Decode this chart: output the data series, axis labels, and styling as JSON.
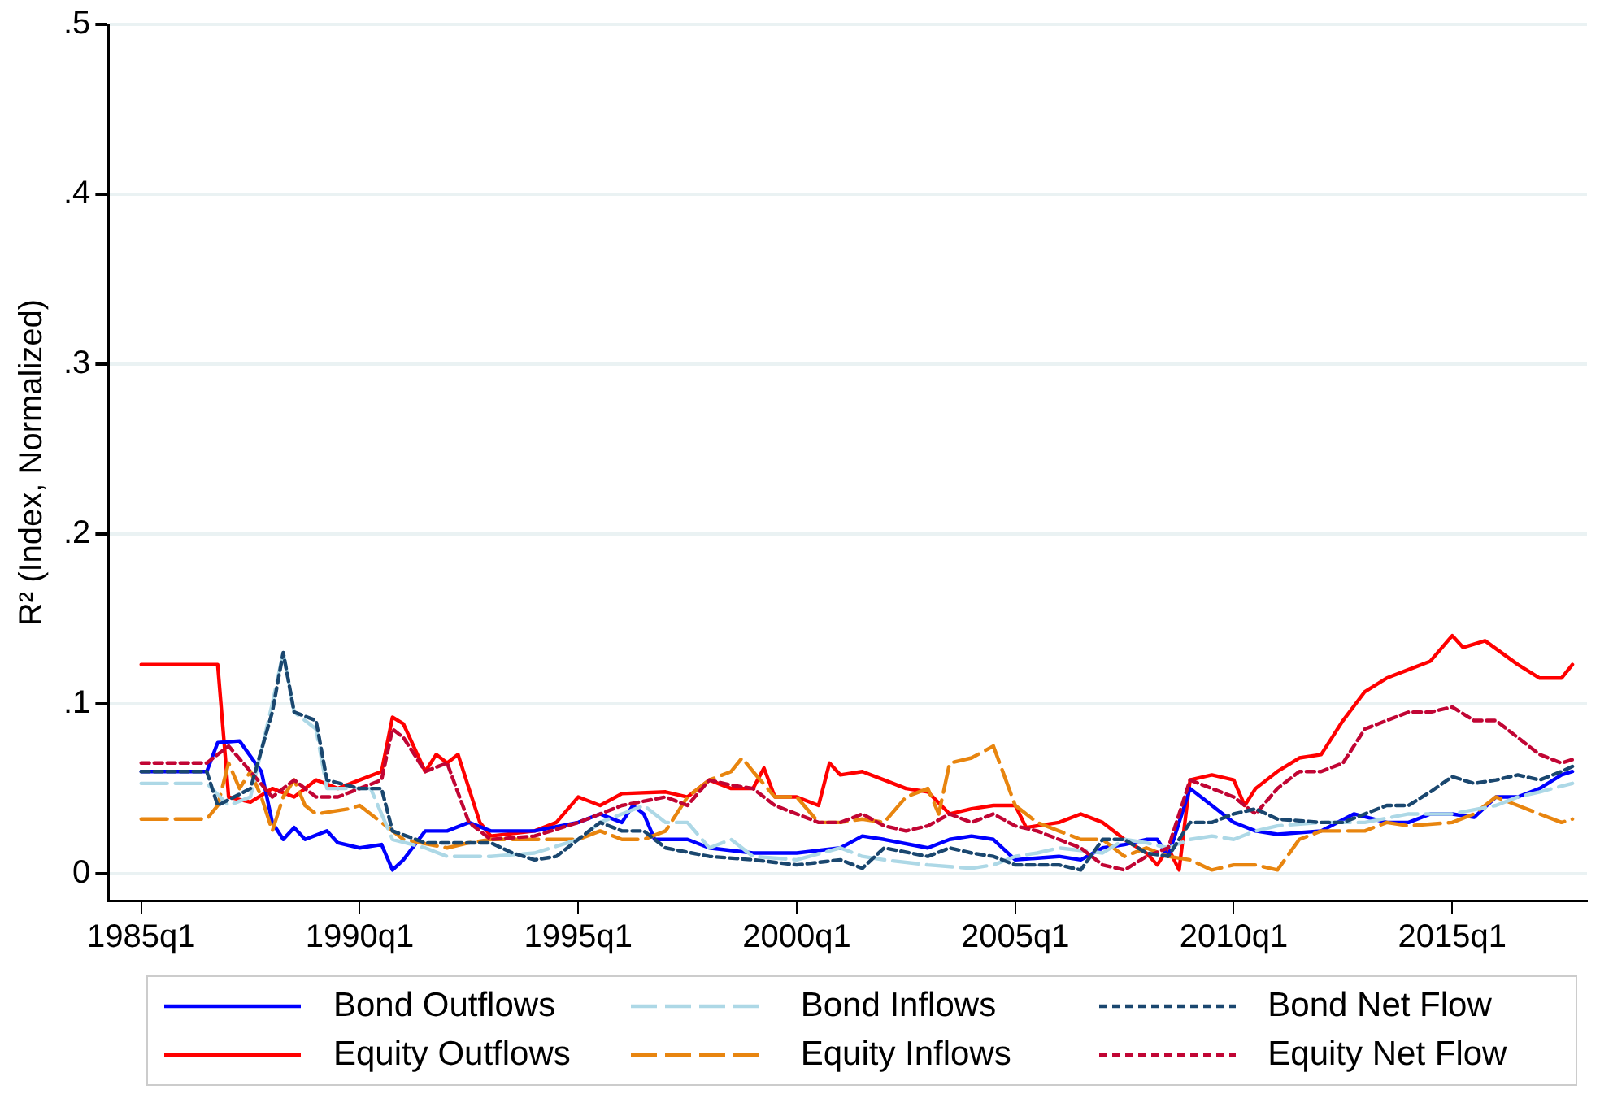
{
  "chart_data": {
    "type": "line",
    "ylabel": "R² (Index, Normalized)",
    "xlim": [
      "1984-04",
      "2018-02"
    ],
    "ylim": [
      -0.016,
      0.5
    ],
    "xticks": [
      {
        "value": "1985-01",
        "label": "1985q1"
      },
      {
        "value": "1990-01",
        "label": "1990q1"
      },
      {
        "value": "1995-01",
        "label": "1995q1"
      },
      {
        "value": "2000-01",
        "label": "2000q1"
      },
      {
        "value": "2005-01",
        "label": "2005q1"
      },
      {
        "value": "2010-01",
        "label": "2010q1"
      },
      {
        "value": "2015-01",
        "label": "2015q1"
      }
    ],
    "yticks": [
      0,
      {
        "value": 0.1,
        "label": ".1"
      },
      {
        "value": 0.2,
        "label": ".2"
      },
      {
        "value": 0.3,
        "label": ".3"
      },
      {
        "value": 0.4,
        "label": ".4"
      },
      {
        "value": 0.5,
        "label": ".5"
      }
    ],
    "grid": "y",
    "legend": "bottom",
    "series": [
      {
        "name": "Bond Outflows",
        "color": "#0000ff",
        "line_style": "solid",
        "x": [
          "1985-01",
          "1986-07",
          "1986-10",
          "1987-04",
          "1987-10",
          "1988-01",
          "1988-04",
          "1988-07",
          "1988-10",
          "1989-04",
          "1989-07",
          "1990-01",
          "1990-07",
          "1990-10",
          "1991-01",
          "1991-07",
          "1992-01",
          "1992-07",
          "1993-01",
          "1994-01",
          "1995-01",
          "1995-07",
          "1996-01",
          "1996-04",
          "1996-07",
          "1996-10",
          "1997-07",
          "1998-01",
          "1999-01",
          "2000-01",
          "2001-01",
          "2001-07",
          "2002-01",
          "2003-01",
          "2003-07",
          "2004-01",
          "2004-07",
          "2005-01",
          "2006-01",
          "2006-07",
          "2007-01",
          "2007-07",
          "2008-01",
          "2008-04",
          "2008-07",
          "2009-01",
          "2009-04",
          "2009-10",
          "2010-01",
          "2010-07",
          "2011-01",
          "2012-01",
          "2012-10",
          "2013-07",
          "2014-01",
          "2014-07",
          "2015-01",
          "2015-07",
          "2016-01",
          "2016-07",
          "2017-01",
          "2017-07",
          "2017-10"
        ],
        "values": [
          0.06,
          0.06,
          0.077,
          0.078,
          0.06,
          0.03,
          0.02,
          0.027,
          0.02,
          0.025,
          0.018,
          0.015,
          0.017,
          0.002,
          0.008,
          0.025,
          0.025,
          0.03,
          0.025,
          0.025,
          0.03,
          0.035,
          0.03,
          0.04,
          0.035,
          0.02,
          0.02,
          0.015,
          0.012,
          0.012,
          0.015,
          0.022,
          0.02,
          0.015,
          0.02,
          0.022,
          0.02,
          0.008,
          0.01,
          0.008,
          0.015,
          0.017,
          0.02,
          0.02,
          0.01,
          0.05,
          0.045,
          0.035,
          0.03,
          0.025,
          0.023,
          0.025,
          0.035,
          0.03,
          0.03,
          0.035,
          0.035,
          0.033,
          0.045,
          0.045,
          0.05,
          0.058,
          0.06
        ]
      },
      {
        "name": "Bond Inflows",
        "color": "#add8e6",
        "line_style": "dashed",
        "x": [
          "1985-01",
          "1986-07",
          "1987-01",
          "1987-07",
          "1988-01",
          "1988-04",
          "1988-07",
          "1989-01",
          "1989-04",
          "1990-01",
          "1990-04",
          "1990-10",
          "1991-07",
          "1992-01",
          "1993-01",
          "1994-01",
          "1995-01",
          "1995-07",
          "1996-01",
          "1996-07",
          "1997-01",
          "1997-07",
          "1998-01",
          "1998-07",
          "1999-01",
          "2000-01",
          "2001-01",
          "2001-07",
          "2002-01",
          "2003-01",
          "2004-01",
          "2004-07",
          "2005-01",
          "2005-07",
          "2006-01",
          "2007-01",
          "2007-07",
          "2008-01",
          "2008-07",
          "2009-01",
          "2009-07",
          "2010-01",
          "2010-07",
          "2011-01",
          "2012-01",
          "2013-01",
          "2014-01",
          "2015-01",
          "2016-01",
          "2016-07",
          "2017-01",
          "2017-10"
        ],
        "values": [
          0.053,
          0.053,
          0.04,
          0.045,
          0.1,
          0.13,
          0.095,
          0.085,
          0.05,
          0.05,
          0.05,
          0.02,
          0.015,
          0.01,
          0.01,
          0.012,
          0.02,
          0.03,
          0.035,
          0.04,
          0.03,
          0.03,
          0.015,
          0.02,
          0.01,
          0.008,
          0.015,
          0.01,
          0.008,
          0.005,
          0.003,
          0.005,
          0.01,
          0.012,
          0.015,
          0.012,
          0.02,
          0.018,
          0.015,
          0.02,
          0.022,
          0.02,
          0.025,
          0.028,
          0.03,
          0.03,
          0.035,
          0.035,
          0.04,
          0.045,
          0.048,
          0.053
        ]
      },
      {
        "name": "Bond Net Flow",
        "color": "#1a476f",
        "line_style": "dotted",
        "x": [
          "1985-01",
          "1986-07",
          "1986-10",
          "1987-07",
          "1988-01",
          "1988-04",
          "1988-07",
          "1989-01",
          "1989-04",
          "1990-01",
          "1990-07",
          "1990-10",
          "1991-07",
          "1992-07",
          "1993-01",
          "1993-07",
          "1994-01",
          "1994-07",
          "1995-01",
          "1995-07",
          "1996-01",
          "1996-07",
          "1997-01",
          "1998-01",
          "1999-01",
          "2000-01",
          "2001-01",
          "2001-07",
          "2002-01",
          "2003-01",
          "2003-07",
          "2004-01",
          "2004-07",
          "2005-01",
          "2006-01",
          "2006-07",
          "2007-01",
          "2007-07",
          "2008-01",
          "2008-07",
          "2009-01",
          "2009-07",
          "2010-01",
          "2010-07",
          "2011-01",
          "2012-01",
          "2012-07",
          "2013-01",
          "2013-07",
          "2014-01",
          "2014-07",
          "2015-01",
          "2015-07",
          "2016-01",
          "2016-07",
          "2017-01",
          "2017-07",
          "2017-10"
        ],
        "values": [
          0.06,
          0.06,
          0.04,
          0.05,
          0.095,
          0.13,
          0.095,
          0.09,
          0.055,
          0.05,
          0.05,
          0.025,
          0.018,
          0.018,
          0.018,
          0.012,
          0.008,
          0.01,
          0.02,
          0.03,
          0.025,
          0.025,
          0.015,
          0.01,
          0.008,
          0.005,
          0.008,
          0.003,
          0.015,
          0.01,
          0.015,
          0.012,
          0.01,
          0.005,
          0.005,
          0.002,
          0.02,
          0.02,
          0.012,
          0.01,
          0.03,
          0.03,
          0.035,
          0.038,
          0.032,
          0.03,
          0.03,
          0.035,
          0.04,
          0.04,
          0.048,
          0.057,
          0.053,
          0.055,
          0.058,
          0.055,
          0.06,
          0.063
        ]
      },
      {
        "name": "Equity Outflows",
        "color": "#ff0000",
        "line_style": "solid",
        "x": [
          "1985-01",
          "1986-10",
          "1987-01",
          "1987-07",
          "1988-01",
          "1988-07",
          "1989-01",
          "1989-07",
          "1990-01",
          "1990-07",
          "1990-10",
          "1991-01",
          "1991-07",
          "1991-10",
          "1992-01",
          "1992-04",
          "1992-10",
          "1993-01",
          "1994-01",
          "1994-07",
          "1995-01",
          "1995-07",
          "1996-01",
          "1997-01",
          "1997-07",
          "1998-01",
          "1998-07",
          "1999-01",
          "1999-04",
          "1999-07",
          "2000-01",
          "2000-07",
          "2000-10",
          "2001-01",
          "2001-07",
          "2002-01",
          "2002-07",
          "2003-01",
          "2003-07",
          "2004-01",
          "2004-07",
          "2005-01",
          "2005-04",
          "2006-01",
          "2006-07",
          "2007-01",
          "2007-07",
          "2008-01",
          "2008-04",
          "2008-07",
          "2008-10",
          "2009-01",
          "2009-07",
          "2010-01",
          "2010-04",
          "2010-07",
          "2011-01",
          "2011-07",
          "2012-01",
          "2012-07",
          "2013-01",
          "2013-07",
          "2014-01",
          "2014-07",
          "2015-01",
          "2015-04",
          "2015-10",
          "2016-07",
          "2017-01",
          "2017-07",
          "2017-10"
        ],
        "values": [
          0.123,
          0.123,
          0.045,
          0.042,
          0.05,
          0.045,
          0.055,
          0.05,
          0.055,
          0.06,
          0.092,
          0.088,
          0.06,
          0.07,
          0.065,
          0.07,
          0.03,
          0.022,
          0.025,
          0.03,
          0.045,
          0.04,
          0.047,
          0.048,
          0.045,
          0.055,
          0.05,
          0.05,
          0.062,
          0.045,
          0.045,
          0.04,
          0.065,
          0.058,
          0.06,
          0.055,
          0.05,
          0.048,
          0.035,
          0.038,
          0.04,
          0.04,
          0.027,
          0.03,
          0.035,
          0.03,
          0.02,
          0.012,
          0.005,
          0.015,
          0.002,
          0.055,
          0.058,
          0.055,
          0.04,
          0.05,
          0.06,
          0.068,
          0.07,
          0.09,
          0.107,
          0.115,
          0.12,
          0.125,
          0.14,
          0.133,
          0.137,
          0.123,
          0.115,
          0.115,
          0.123
        ]
      },
      {
        "name": "Equity Inflows",
        "color": "#e8850f",
        "line_style": "dashed",
        "x": [
          "1985-01",
          "1986-07",
          "1986-10",
          "1987-01",
          "1987-04",
          "1987-07",
          "1987-10",
          "1988-01",
          "1988-04",
          "1988-07",
          "1988-10",
          "1989-01",
          "1989-10",
          "1990-01",
          "1990-07",
          "1991-01",
          "1992-01",
          "1992-07",
          "1993-01",
          "1994-01",
          "1995-01",
          "1995-07",
          "1996-01",
          "1996-07",
          "1997-01",
          "1997-07",
          "1998-01",
          "1998-07",
          "1998-10",
          "1999-01",
          "1999-07",
          "2000-01",
          "2000-07",
          "2001-01",
          "2001-07",
          "2002-01",
          "2002-07",
          "2003-01",
          "2003-04",
          "2003-07",
          "2004-01",
          "2004-07",
          "2005-01",
          "2005-07",
          "2006-01",
          "2006-07",
          "2007-01",
          "2007-07",
          "2008-01",
          "2008-07",
          "2009-01",
          "2009-07",
          "2010-01",
          "2010-07",
          "2011-01",
          "2011-07",
          "2012-01",
          "2013-01",
          "2013-07",
          "2014-01",
          "2015-01",
          "2015-07",
          "2016-01",
          "2016-07",
          "2017-01",
          "2017-07",
          "2017-10"
        ],
        "values": [
          0.032,
          0.032,
          0.04,
          0.065,
          0.05,
          0.06,
          0.045,
          0.025,
          0.045,
          0.055,
          0.04,
          0.035,
          0.038,
          0.04,
          0.03,
          0.02,
          0.015,
          0.018,
          0.02,
          0.02,
          0.02,
          0.025,
          0.02,
          0.02,
          0.025,
          0.045,
          0.055,
          0.06,
          0.068,
          0.06,
          0.045,
          0.045,
          0.03,
          0.03,
          0.032,
          0.03,
          0.045,
          0.05,
          0.035,
          0.065,
          0.068,
          0.075,
          0.04,
          0.03,
          0.025,
          0.02,
          0.02,
          0.01,
          0.015,
          0.01,
          0.008,
          0.002,
          0.005,
          0.005,
          0.002,
          0.02,
          0.025,
          0.025,
          0.03,
          0.028,
          0.03,
          0.035,
          0.045,
          0.04,
          0.035,
          0.03,
          0.032
        ]
      },
      {
        "name": "Equity Net Flow",
        "color": "#c10534",
        "line_style": "dotted",
        "x": [
          "1985-01",
          "1986-07",
          "1987-01",
          "1987-07",
          "1988-01",
          "1988-07",
          "1989-01",
          "1989-07",
          "1990-01",
          "1990-07",
          "1990-10",
          "1991-01",
          "1991-07",
          "1992-01",
          "1992-07",
          "1993-01",
          "1994-01",
          "1995-01",
          "1995-07",
          "1996-01",
          "1997-01",
          "1997-07",
          "1998-01",
          "1998-07",
          "1999-01",
          "1999-07",
          "2000-01",
          "2000-07",
          "2001-01",
          "2001-07",
          "2002-01",
          "2002-07",
          "2003-01",
          "2003-07",
          "2004-01",
          "2004-07",
          "2005-01",
          "2005-07",
          "2006-01",
          "2006-07",
          "2007-01",
          "2007-07",
          "2008-01",
          "2008-07",
          "2009-01",
          "2009-07",
          "2010-01",
          "2010-07",
          "2011-01",
          "2011-07",
          "2012-01",
          "2012-07",
          "2013-01",
          "2013-07",
          "2014-01",
          "2014-07",
          "2015-01",
          "2015-07",
          "2016-01",
          "2016-07",
          "2017-01",
          "2017-07",
          "2017-10"
        ],
        "values": [
          0.065,
          0.065,
          0.075,
          0.06,
          0.045,
          0.055,
          0.045,
          0.045,
          0.05,
          0.055,
          0.085,
          0.08,
          0.06,
          0.065,
          0.03,
          0.02,
          0.022,
          0.03,
          0.035,
          0.04,
          0.045,
          0.04,
          0.055,
          0.052,
          0.05,
          0.04,
          0.035,
          0.03,
          0.03,
          0.035,
          0.028,
          0.025,
          0.028,
          0.035,
          0.03,
          0.035,
          0.028,
          0.025,
          0.02,
          0.015,
          0.005,
          0.002,
          0.01,
          0.015,
          0.055,
          0.05,
          0.045,
          0.035,
          0.05,
          0.06,
          0.06,
          0.065,
          0.085,
          0.09,
          0.095,
          0.095,
          0.098,
          0.09,
          0.09,
          0.08,
          0.07,
          0.065,
          0.067
        ]
      }
    ]
  }
}
